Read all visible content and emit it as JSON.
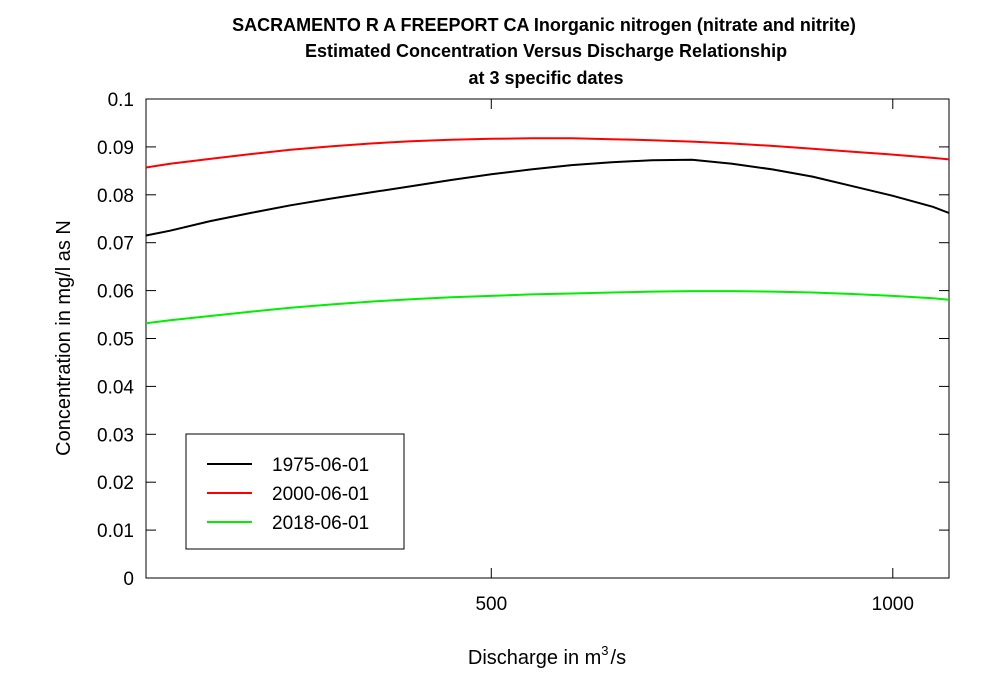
{
  "chart_data": {
    "type": "line",
    "title": "SACRAMENTO R A FREEPORT CA    Inorganic nitrogen (nitrate and nitrite)",
    "subtitle_line2": "Estimated Concentration Versus Discharge Relationship",
    "subtitle_line3": "at 3 specific dates",
    "xlabel_prefix": "Discharge in m",
    "xlabel_superscript": "3",
    "xlabel_suffix": "/s",
    "ylabel": "Concentration in mg/l as N",
    "xlim": [
      70,
      1070
    ],
    "ylim": [
      0,
      0.1
    ],
    "x_ticks": [
      500,
      1000
    ],
    "x_tick_labels": [
      "500",
      "1000"
    ],
    "y_ticks": [
      0,
      0.01,
      0.02,
      0.03,
      0.04,
      0.05,
      0.06,
      0.07,
      0.08,
      0.09,
      0.1
    ],
    "y_tick_labels": [
      "0",
      "0.01",
      "0.02",
      "0.03",
      "0.04",
      "0.05",
      "0.06",
      "0.07",
      "0.08",
      "0.09",
      "0.1"
    ],
    "grid": false,
    "legend_position": "bottom-left",
    "series": [
      {
        "name": "1975-06-01",
        "color": "#000000",
        "x": [
          70,
          100,
          150,
          200,
          250,
          300,
          350,
          400,
          450,
          500,
          550,
          600,
          650,
          700,
          750,
          800,
          850,
          900,
          950,
          1000,
          1050,
          1070
        ],
        "y": [
          0.0715,
          0.0725,
          0.0745,
          0.0762,
          0.0778,
          0.0792,
          0.0805,
          0.0818,
          0.0831,
          0.0843,
          0.0853,
          0.0862,
          0.0868,
          0.0872,
          0.0873,
          0.0865,
          0.0853,
          0.0838,
          0.0818,
          0.0798,
          0.0775,
          0.0762
        ]
      },
      {
        "name": "2000-06-01",
        "color": "#ff0000",
        "x": [
          70,
          100,
          150,
          200,
          250,
          300,
          350,
          400,
          450,
          500,
          550,
          600,
          650,
          700,
          750,
          800,
          850,
          900,
          950,
          1000,
          1050,
          1070
        ],
        "y": [
          0.0857,
          0.0865,
          0.0875,
          0.0885,
          0.0894,
          0.0901,
          0.0907,
          0.0912,
          0.0915,
          0.0917,
          0.0918,
          0.0918,
          0.0916,
          0.0914,
          0.0911,
          0.0907,
          0.0902,
          0.0896,
          0.089,
          0.0884,
          0.0877,
          0.0874
        ]
      },
      {
        "name": "2018-06-01",
        "color": "#00ee00",
        "x": [
          70,
          100,
          150,
          200,
          250,
          300,
          350,
          400,
          450,
          500,
          550,
          600,
          650,
          700,
          750,
          800,
          850,
          900,
          950,
          1000,
          1050,
          1070
        ],
        "y": [
          0.0532,
          0.0538,
          0.0547,
          0.0556,
          0.0564,
          0.0571,
          0.0577,
          0.0582,
          0.0586,
          0.0589,
          0.0592,
          0.0594,
          0.0596,
          0.0598,
          0.0599,
          0.0599,
          0.0598,
          0.0596,
          0.0593,
          0.0589,
          0.0584,
          0.0581
        ]
      }
    ]
  }
}
